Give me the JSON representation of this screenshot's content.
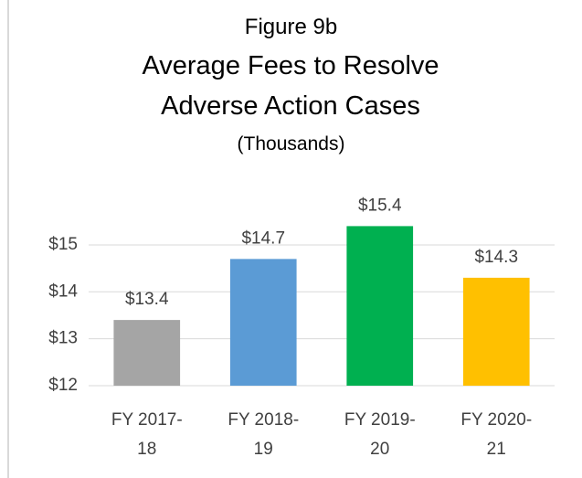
{
  "chart_data": {
    "type": "bar",
    "supertitle": "Figure 9b",
    "title": "Average Fees to Resolve Adverse Action Cases",
    "subtitle": "(Thousands)",
    "categories": [
      "FY 2017-18",
      "FY 2018-19",
      "FY 2019-20",
      "FY 2020-21"
    ],
    "values": [
      13.4,
      14.7,
      15.4,
      14.3
    ],
    "value_labels": [
      "$13.4",
      "$14.7",
      "$15.4",
      "$14.3"
    ],
    "colors": [
      "#a5a5a5",
      "#5b9bd5",
      "#00b050",
      "#ffc000"
    ],
    "ylim": [
      12,
      16
    ],
    "yticks": [
      {
        "value": 12,
        "label": "$12"
      },
      {
        "value": 13,
        "label": "$13"
      },
      {
        "value": 14,
        "label": "$14"
      },
      {
        "value": 15,
        "label": "$15"
      }
    ],
    "grid": true
  }
}
